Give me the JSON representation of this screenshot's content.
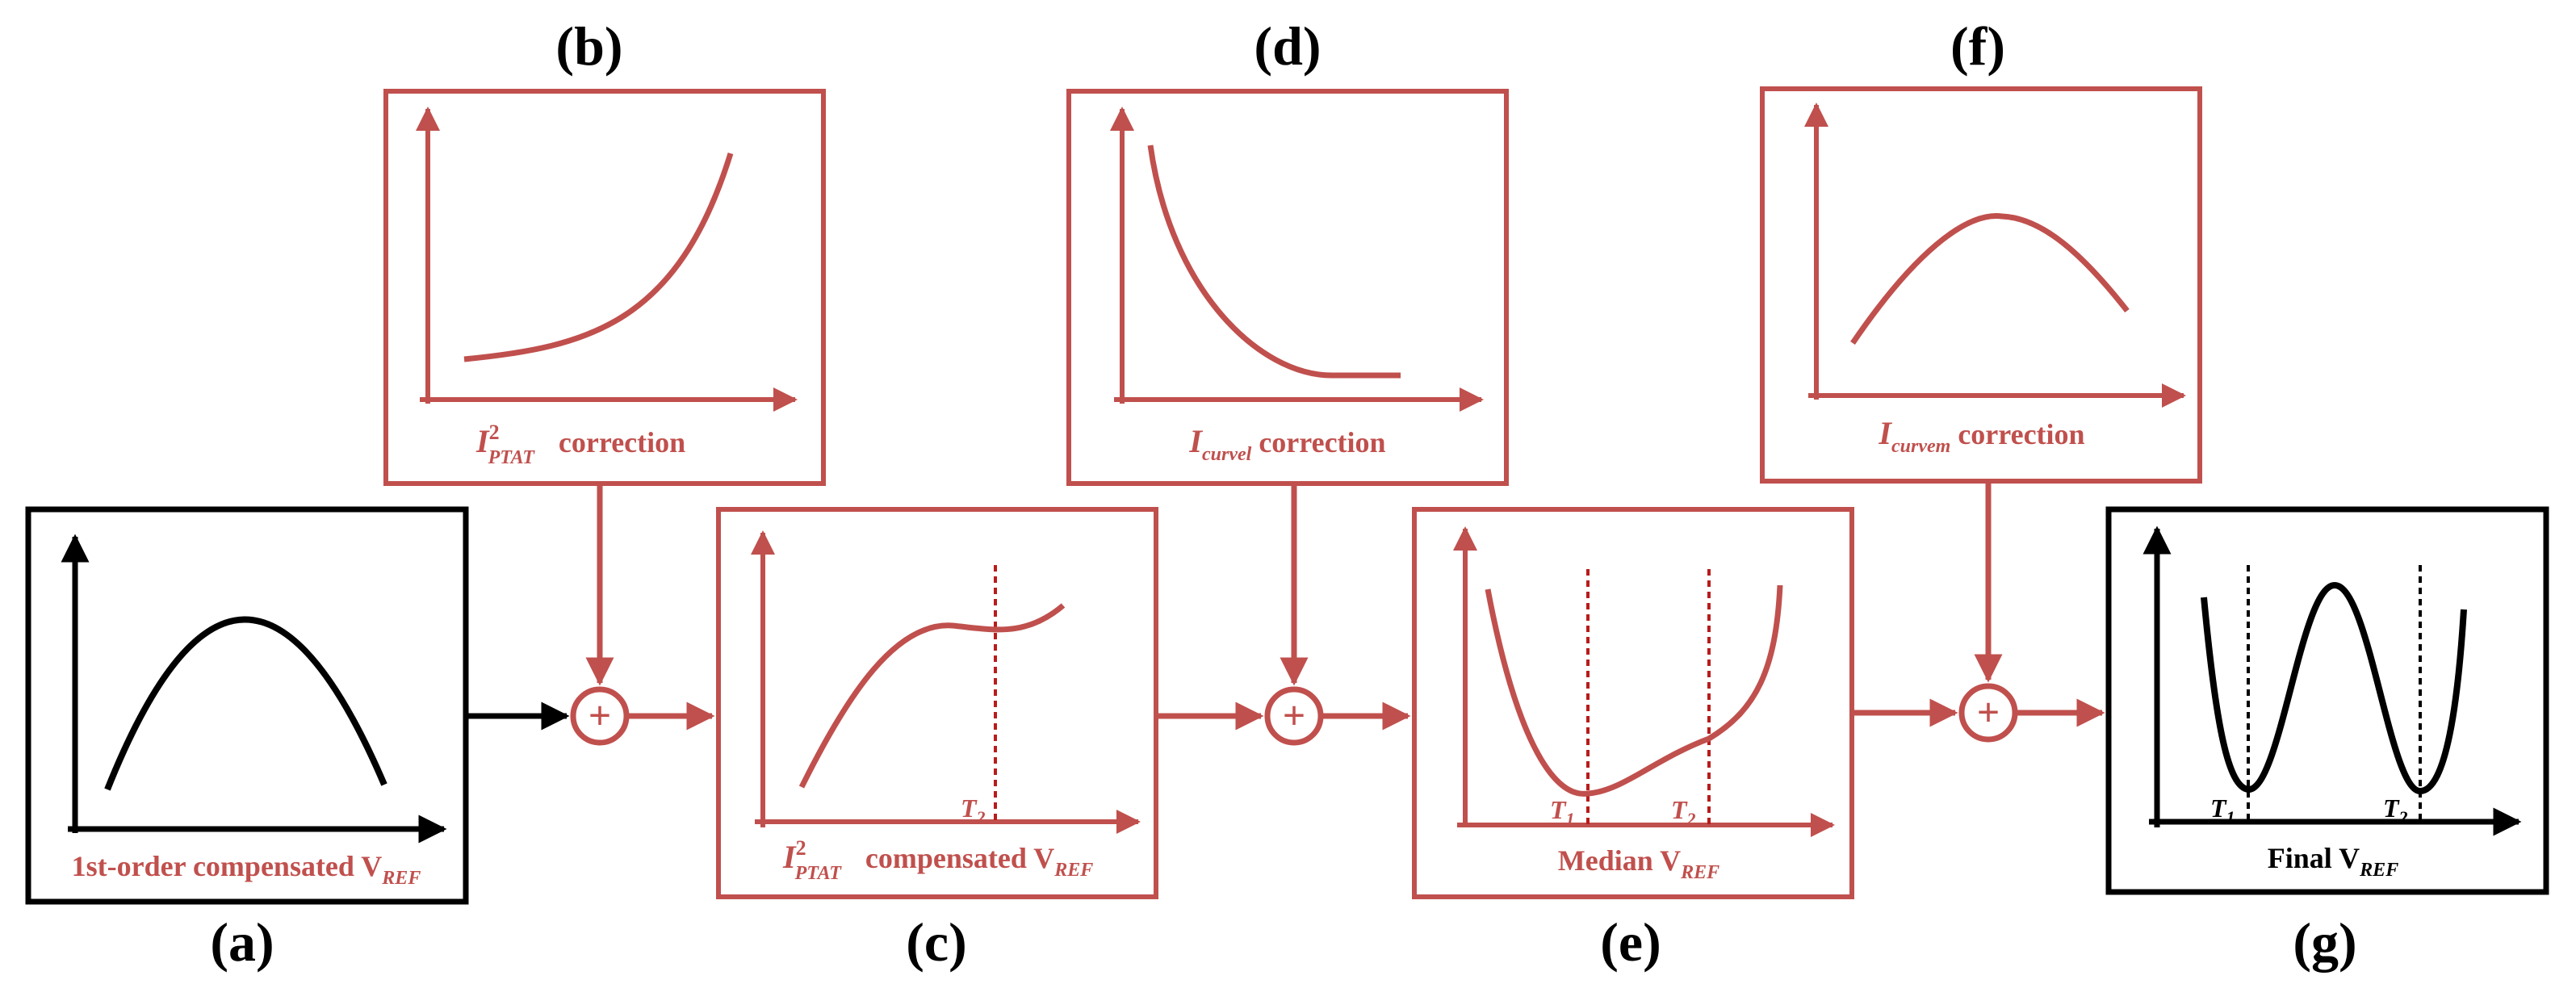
{
  "colors": {
    "red": "#c0504d",
    "black": "#000000",
    "dark_red": "#b81c1c"
  },
  "labels": {
    "a": "(a)",
    "b": "(b)",
    "c": "(c)",
    "d": "(d)",
    "e": "(e)",
    "f": "(f)",
    "g": "(g)"
  },
  "label_letters": {
    "a": "a",
    "b": "b",
    "c": "c",
    "d": "d",
    "e": "e",
    "f": "f",
    "g": "g"
  },
  "captions": {
    "a": {
      "main": "1st-order compensated V",
      "sub": "REF"
    },
    "b": {
      "sym": "I",
      "sup": "2",
      "sub": "PTAT",
      "rest": "correction"
    },
    "c": {
      "sym": "I",
      "sup": "2",
      "sub": "PTAT",
      "rest": "compensated V",
      "rest_sub": "REF"
    },
    "d": {
      "sym": "I",
      "sub": "curvel",
      "rest": " correction"
    },
    "e": {
      "main": "Median V",
      "sub": "REF"
    },
    "f": {
      "sym": "I",
      "sub": "curvem",
      "rest": " correction"
    },
    "g": {
      "main": "Final V",
      "sub": "REF"
    }
  },
  "markers": {
    "t1": {
      "sym": "T",
      "sub": "1"
    },
    "t2": {
      "sym": "T",
      "sub": "2"
    }
  },
  "sum_symbol": "+"
}
